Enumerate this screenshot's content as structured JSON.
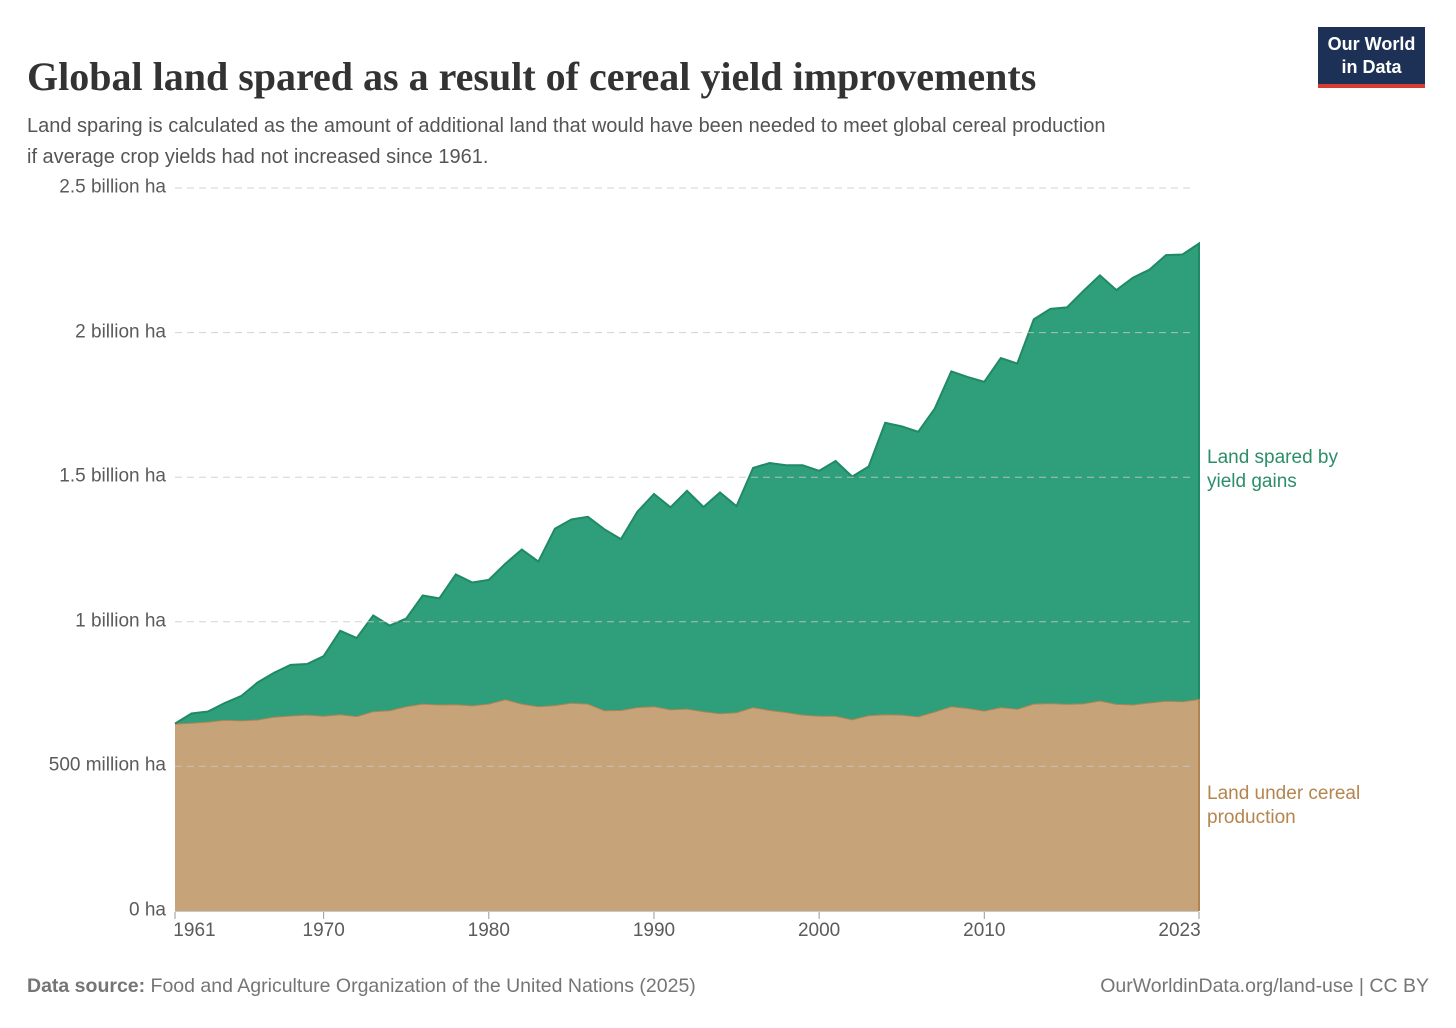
{
  "header": {
    "title": "Global land spared as a result of cereal yield improvements",
    "subtitle": "Land sparing is calculated as the amount of additional land that would have been needed to meet global cereal production if average crop yields had not increased since 1961.",
    "logo": {
      "line1": "Our World",
      "line2": "in Data"
    }
  },
  "chart_data": {
    "type": "area",
    "stacked": true,
    "title": "Global land spared as a result of cereal yield improvements",
    "unit": "million hectares",
    "ylim": [
      0,
      2500
    ],
    "grid": true,
    "years": [
      1961,
      1962,
      1963,
      1964,
      1965,
      1966,
      1967,
      1968,
      1969,
      1970,
      1971,
      1972,
      1973,
      1974,
      1975,
      1976,
      1977,
      1978,
      1979,
      1980,
      1981,
      1982,
      1983,
      1984,
      1985,
      1986,
      1987,
      1988,
      1989,
      1990,
      1991,
      1992,
      1993,
      1994,
      1995,
      1996,
      1997,
      1998,
      1999,
      2000,
      2001,
      2002,
      2003,
      2004,
      2005,
      2006,
      2007,
      2008,
      2009,
      2010,
      2011,
      2012,
      2013,
      2014,
      2015,
      2016,
      2017,
      2018,
      2019,
      2020,
      2021,
      2022,
      2023
    ],
    "series": [
      {
        "name": "Land under cereal production",
        "fill": "#c7a379",
        "edge": "#b18350",
        "label_color": "#b5854e",
        "label_lines": [
          "Land under cereal",
          "production"
        ],
        "values": [
          648,
          651,
          655,
          661,
          659,
          662,
          672,
          676,
          679,
          675,
          680,
          674,
          691,
          694,
          708,
          717,
          714,
          715,
          711,
          717,
          732,
          717,
          708,
          712,
          720,
          717,
          694,
          695,
          705,
          708,
          697,
          700,
          691,
          684,
          687,
          705,
          695,
          688,
          679,
          675,
          675,
          663,
          677,
          680,
          679,
          673,
          690,
          708,
          702,
          693,
          705,
          699,
          717,
          719,
          716,
          718,
          728,
          716,
          714,
          721,
          727,
          725,
          733
        ]
      },
      {
        "name": "Land spared by yield gains",
        "fill": "#2f9e7a",
        "edge": "#1f8a63",
        "label_color": "#2c8e68",
        "label_lines": [
          "Land spared by",
          "yield gains"
        ],
        "values": [
          0,
          32,
          35,
          58,
          84,
          128,
          152,
          175,
          175,
          206,
          289,
          270,
          331,
          293,
          303,
          374,
          367,
          449,
          425,
          428,
          469,
          533,
          500,
          610,
          634,
          646,
          626,
          591,
          676,
          734,
          699,
          753,
          706,
          763,
          713,
          827,
          854,
          853,
          862,
          847,
          881,
          839,
          860,
          1008,
          997,
          984,
          1047,
          1158,
          1144,
          1137,
          1207,
          1194,
          1329,
          1363,
          1371,
          1426,
          1470,
          1431,
          1476,
          1497,
          1541,
          1545,
          1575
        ]
      }
    ],
    "y_ticks": [
      {
        "value": 0,
        "label": "0 ha"
      },
      {
        "value": 500,
        "label": "500 million ha"
      },
      {
        "value": 1000,
        "label": "1 billion ha"
      },
      {
        "value": 1500,
        "label": "1.5 billion ha"
      },
      {
        "value": 2000,
        "label": "2 billion ha"
      },
      {
        "value": 2500,
        "label": "2.5 billion ha"
      }
    ],
    "x_ticks": [
      1961,
      1970,
      1980,
      1990,
      2000,
      2010,
      2023
    ]
  },
  "footer": {
    "source_label": "Data source:",
    "source_text": " Food and Agriculture Organization of the United Nations (2025)",
    "link": "OurWorldinData.org/land-use | CC BY"
  }
}
